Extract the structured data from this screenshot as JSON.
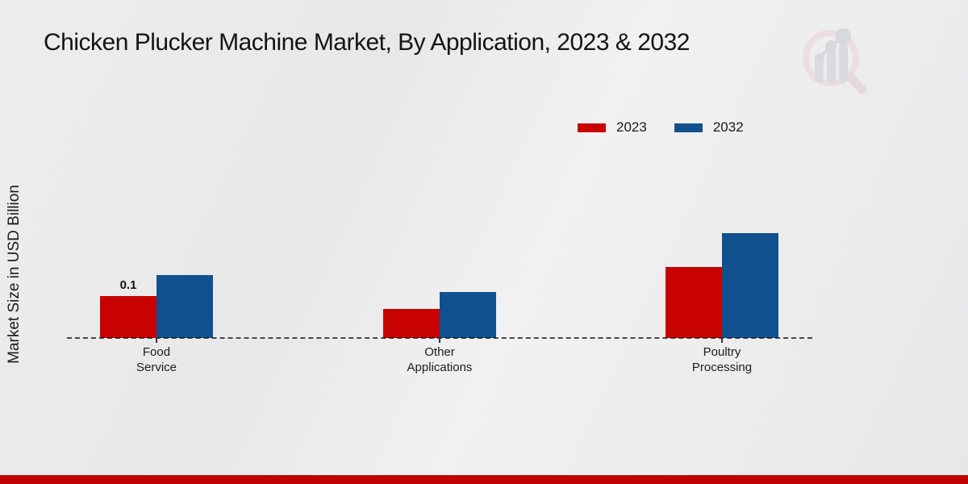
{
  "title": "Chicken Plucker Machine Market, By Application, 2023 & 2032",
  "legend": {
    "items": [
      {
        "label": "2023",
        "color": "#c80202"
      },
      {
        "label": "2032",
        "color": "#11508f"
      }
    ]
  },
  "chart_data": {
    "type": "bar",
    "title": "Chicken Plucker Machine Market, By Application, 2023 & 2032",
    "ylabel": "Market Size in USD Billion",
    "xlabel": "",
    "categories": [
      "Food Service",
      "Other Applications",
      "Poultry Processing"
    ],
    "series": [
      {
        "name": "2023",
        "color": "#c80202",
        "values": [
          0.1,
          0.07,
          0.17
        ]
      },
      {
        "name": "2032",
        "color": "#11508f",
        "values": [
          0.15,
          0.11,
          0.25
        ]
      }
    ],
    "annotations": [
      {
        "series": "2023",
        "category": "Food Service",
        "text": "0.1"
      }
    ],
    "ylim": [
      0,
      0.35
    ],
    "grid": false,
    "baseline_style": "dashed",
    "legend_position": "top-right"
  },
  "watermark": {
    "name": "magnifier-bar-chart-logo"
  },
  "footer": {
    "accent_color": "#c00202"
  }
}
